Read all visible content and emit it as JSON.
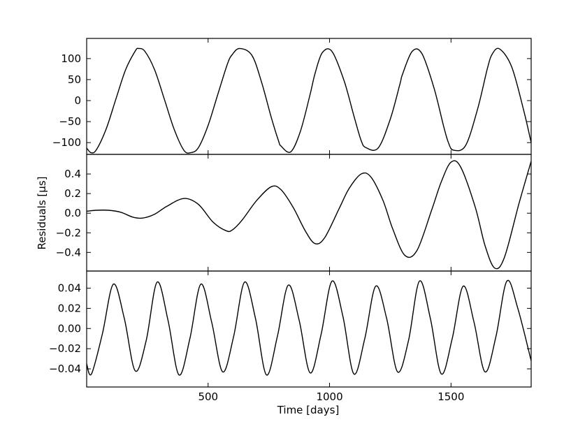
{
  "chart_data": {
    "type": "line",
    "shared_x": {
      "xlabel": "Time [days]",
      "xlim": [
        0,
        1830
      ],
      "xticks": [
        500,
        1000,
        1500
      ],
      "xtick_labels": [
        "500",
        "1000",
        "1500"
      ]
    },
    "ylabel": "Residuals [μs]",
    "panels": [
      {
        "name": "top",
        "ylim": [
          -128,
          148
        ],
        "yticks": [
          -100,
          -50,
          0,
          50,
          100
        ],
        "ytick_labels": [
          "−100",
          "−50",
          "0",
          "50",
          "100"
        ],
        "x": [
          0,
          18,
          40,
          80,
          120,
          160,
          200,
          214,
          240,
          280,
          320,
          360,
          400,
          428,
          460,
          500,
          540,
          580,
          600,
          630,
          680,
          720,
          760,
          790,
          800,
          840,
          880,
          920,
          940,
          970,
          1010,
          1060,
          1100,
          1130,
          1150,
          1200,
          1250,
          1290,
          1300,
          1340,
          1380,
          1430,
          1470,
          1490,
          1510,
          1560,
          1610,
          1650,
          1670,
          1700,
          1750,
          1800,
          1830
        ],
        "values": [
          -113,
          -124,
          -117,
          -68,
          3,
          73,
          118,
          124,
          117,
          73,
          3,
          -68,
          -118,
          -124,
          -112,
          -59,
          15,
          88,
          110,
          124,
          108,
          44,
          -40,
          -96,
          -108,
          -122,
          -73,
          15,
          64,
          114,
          117,
          47,
          -36,
          -95,
          -112,
          -113,
          -44,
          40,
          62,
          117,
          112,
          30,
          -62,
          -101,
          -118,
          -107,
          -19,
          77,
          111,
          123,
          80,
          -25,
          -100
        ]
      },
      {
        "name": "middle",
        "ylim": [
          -0.59,
          0.6
        ],
        "yticks": [
          -0.4,
          -0.2,
          0.0,
          0.2,
          0.4
        ],
        "ytick_labels": [
          "−0.4",
          "−0.2",
          "0.0",
          "0.2",
          "0.4"
        ],
        "x": [
          0,
          40,
          90,
          140,
          190,
          230,
          280,
          330,
          400,
          460,
          520,
          575,
          600,
          640,
          700,
          760,
          800,
          850,
          900,
          940,
          980,
          1040,
          1080,
          1130,
          1170,
          1220,
          1260,
          1310,
          1360,
          1420,
          1460,
          1500,
          1540,
          1600,
          1640,
          1680,
          1720,
          1780,
          1830
        ],
        "values": [
          0.02,
          0.03,
          0.03,
          0.01,
          -0.04,
          -0.05,
          -0.01,
          0.07,
          0.15,
          0.09,
          -0.09,
          -0.18,
          -0.17,
          -0.07,
          0.13,
          0.27,
          0.24,
          0.06,
          -0.18,
          -0.31,
          -0.25,
          0.05,
          0.25,
          0.4,
          0.37,
          0.13,
          -0.16,
          -0.43,
          -0.38,
          0.03,
          0.32,
          0.52,
          0.47,
          0.06,
          -0.33,
          -0.56,
          -0.45,
          0.1,
          0.53
        ]
      },
      {
        "name": "bottom",
        "ylim": [
          -0.058,
          0.057
        ],
        "yticks": [
          -0.04,
          -0.02,
          0.0,
          0.02,
          0.04
        ],
        "ytick_labels": [
          "−0.04",
          "−0.02",
          "0.00",
          "0.02",
          "0.04"
        ],
        "x": [
          0,
          20,
          65,
          110,
          155,
          200,
          245,
          290,
          335,
          380,
          425,
          470,
          515,
          560,
          605,
          650,
          695,
          740,
          785,
          830,
          875,
          920,
          965,
          1010,
          1055,
          1100,
          1145,
          1190,
          1235,
          1280,
          1325,
          1370,
          1415,
          1460,
          1505,
          1550,
          1595,
          1640,
          1685,
          1730,
          1775,
          1830
        ],
        "values": [
          -0.035,
          -0.045,
          -0.005,
          0.044,
          0.01,
          -0.042,
          -0.012,
          0.046,
          0.008,
          -0.046,
          -0.01,
          0.044,
          0.006,
          -0.043,
          -0.008,
          0.046,
          0.01,
          -0.046,
          -0.008,
          0.043,
          0.008,
          -0.044,
          -0.006,
          0.047,
          0.012,
          -0.045,
          -0.01,
          0.042,
          0.01,
          -0.043,
          -0.012,
          0.047,
          0.01,
          -0.045,
          -0.01,
          0.042,
          0.006,
          -0.043,
          -0.008,
          0.047,
          0.02,
          -0.032
        ]
      }
    ]
  }
}
